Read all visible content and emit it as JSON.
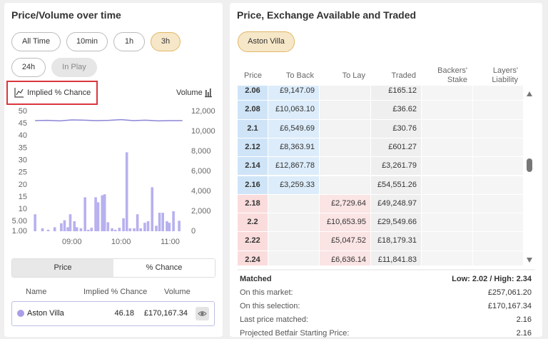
{
  "left_panel": {
    "title": "Price/Volume over time",
    "time_filters": [
      "All Time",
      "10min",
      "1h",
      "3h",
      "24h",
      "In Play"
    ],
    "selected_filter": 3,
    "disabled_filter": 5,
    "chart_toggle": "Implied % Chance",
    "volume_label": "Volume",
    "chart": {
      "type": "bar-line",
      "xlim": [
        494,
        677
      ],
      "xticks": [
        {
          "value": 540,
          "label": "09:00"
        },
        {
          "value": 600,
          "label": "10:00"
        },
        {
          "value": 660,
          "label": "11:00"
        }
      ],
      "ylim": [
        1,
        50
      ],
      "yticks": [
        50,
        45,
        40,
        35,
        30,
        25,
        20,
        15,
        10,
        {
          "value": 5,
          "label": "5.00"
        },
        {
          "value": 1,
          "label": "1.00"
        }
      ],
      "y2lim": [
        0,
        12000
      ],
      "y2ticks": [
        {
          "value": 12000,
          "label": "12,000"
        },
        {
          "value": 10000,
          "label": "10,000"
        },
        {
          "value": 8000,
          "label": "8,000"
        },
        {
          "value": 6000,
          "label": "6,000"
        },
        {
          "value": 4000,
          "label": "4,000"
        },
        {
          "value": 2000,
          "label": "2,000"
        },
        0
      ],
      "line": {
        "color": "#8c86d6",
        "x": [
          495,
          510,
          525,
          540,
          555,
          570,
          585,
          600,
          615,
          630,
          645,
          660,
          675
        ],
        "values": [
          46.2,
          46.3,
          46.1,
          46.5,
          46.4,
          46.2,
          46.3,
          46.6,
          46.2,
          46.4,
          46.1,
          46.2,
          46.2
        ]
      },
      "bars": {
        "color": "#b7b0ef",
        "axis": "y2",
        "x": [
          495,
          504,
          511,
          519,
          527,
          531,
          535,
          538,
          543,
          546,
          551,
          556,
          560,
          564,
          569,
          572,
          577,
          580,
          584,
          589,
          593,
          598,
          603,
          607,
          611,
          616,
          620,
          624,
          629,
          633,
          638,
          643,
          647,
          651,
          656,
          659,
          664,
          671
        ],
        "values": [
          1700,
          300,
          150,
          400,
          800,
          1100,
          400,
          1700,
          1000,
          400,
          300,
          3400,
          150,
          350,
          3400,
          2900,
          3600,
          3700,
          900,
          300,
          150,
          350,
          1300,
          7900,
          300,
          300,
          1700,
          300,
          850,
          1000,
          4400,
          550,
          1850,
          1850,
          1000,
          850,
          2000,
          1050
        ]
      }
    },
    "tabs": [
      "Price",
      "% Chance"
    ],
    "selected_tab": 0,
    "table": {
      "headers": [
        "Name",
        "Implied % Chance",
        "Volume"
      ],
      "rows": [
        [
          "Aston Villa",
          46.18,
          "£170,167.34"
        ]
      ]
    }
  },
  "right_panel": {
    "title": "Price, Exchange Available and Traded",
    "selection": "Aston Villa",
    "ladder": {
      "headers": [
        "Price",
        "To Back",
        "To Lay",
        "Traded",
        "Backers' Stake",
        "Layers' Liability"
      ],
      "rows": [
        [
          2.06,
          "£9,147.09",
          null,
          "£165.12",
          null,
          null
        ],
        [
          2.08,
          "£10,063.10",
          null,
          "£36.62",
          null,
          null
        ],
        [
          2.1,
          "£6,549.69",
          null,
          "£30.76",
          null,
          null
        ],
        [
          2.12,
          "£8,363.91",
          null,
          "£601.27",
          null,
          null
        ],
        [
          2.14,
          "£12,867.78",
          null,
          "£3,261.79",
          null,
          null
        ],
        [
          2.16,
          "£3,259.33",
          null,
          "£54,551.26",
          null,
          null
        ],
        [
          2.18,
          null,
          "£2,729.64",
          "£49,248.97",
          null,
          null
        ],
        [
          2.2,
          null,
          "£10,653.95",
          "£29,549.66",
          null,
          null
        ],
        [
          2.22,
          null,
          "£5,047.52",
          "£18,179.31",
          null,
          null
        ],
        [
          2.24,
          null,
          "£6,636.14",
          "£11,841.83",
          null,
          null
        ]
      ]
    },
    "matched": {
      "label": "Matched",
      "range": "Low: 2.02 / High: 2.34",
      "lines": [
        [
          "On this market:",
          "£257,061.20"
        ],
        [
          "On this selection:",
          "£170,167.34"
        ],
        [
          "Last price matched:",
          2.16
        ],
        [
          "Projected Betfair Starting Price:",
          2.16
        ]
      ]
    }
  }
}
